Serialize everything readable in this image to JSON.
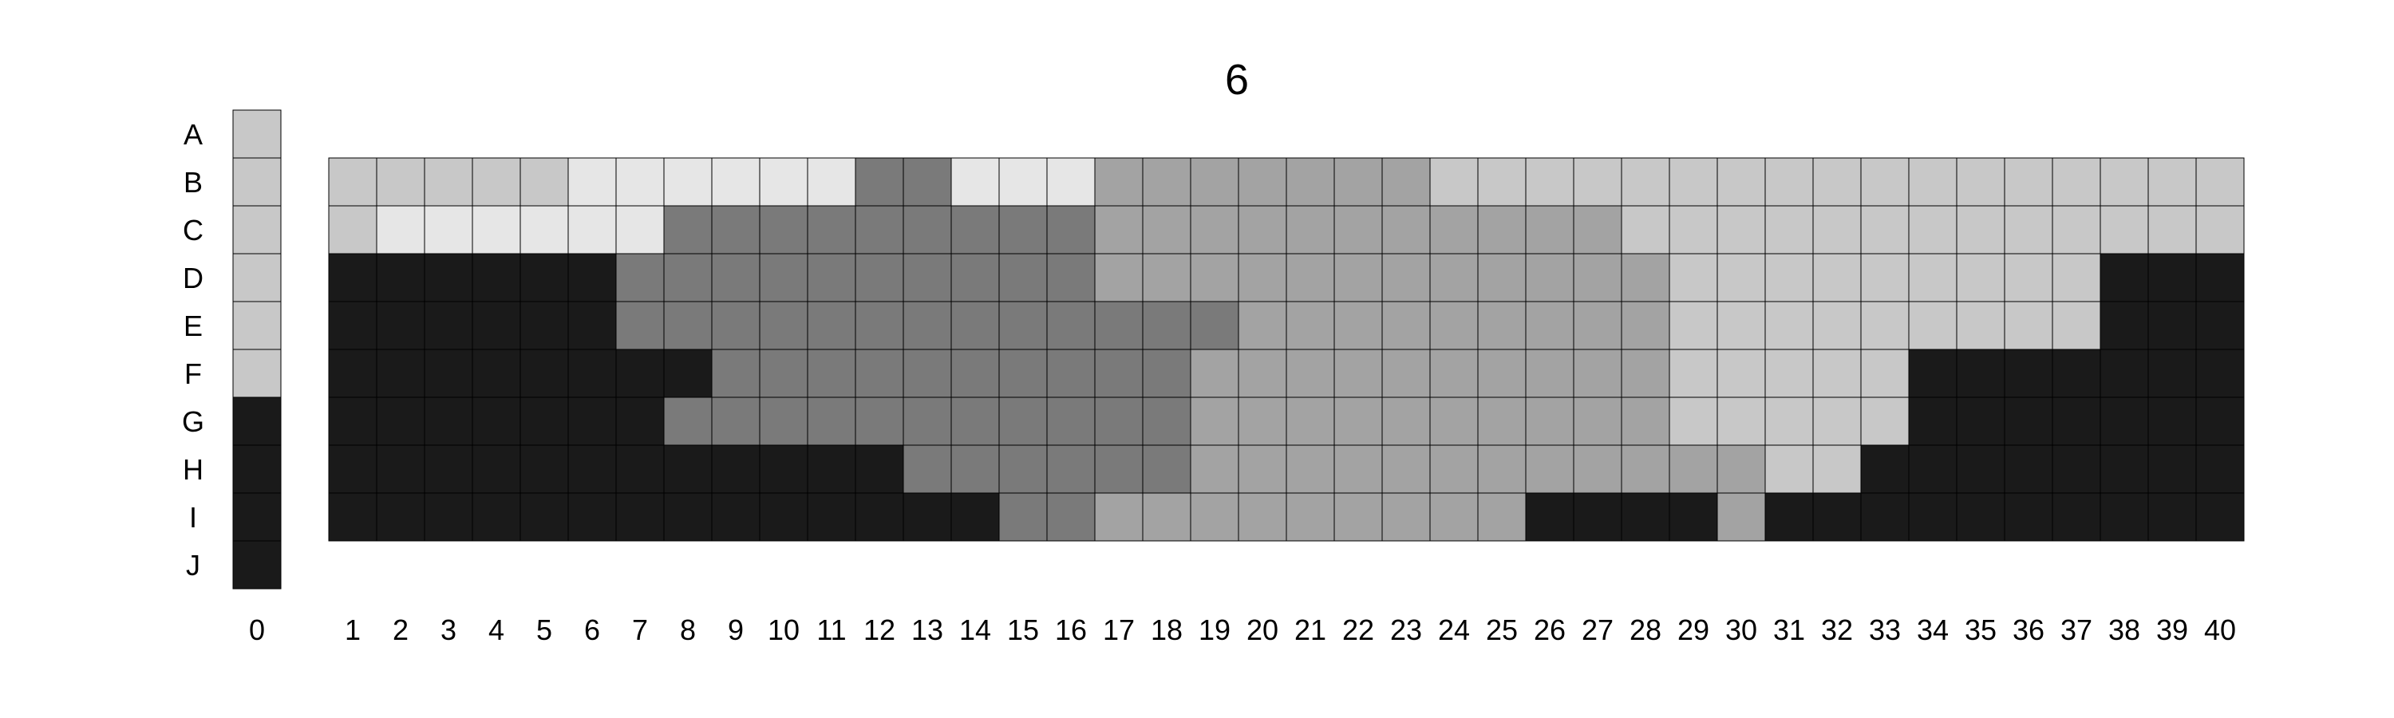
{
  "chart_data": {
    "type": "heatmap",
    "title": "6",
    "row_labels": [
      "A",
      "B",
      "C",
      "D",
      "E",
      "F",
      "G",
      "H",
      "I",
      "J"
    ],
    "legend_column": {
      "label": "0",
      "values": [
        1,
        1,
        1,
        1,
        1,
        1,
        4,
        4,
        4,
        4
      ]
    },
    "column_labels": [
      "1",
      "2",
      "3",
      "4",
      "5",
      "6",
      "7",
      "8",
      "9",
      "10",
      "11",
      "12",
      "13",
      "14",
      "15",
      "16",
      "17",
      "18",
      "19",
      "20",
      "21",
      "22",
      "23",
      "24",
      "25",
      "26",
      "27",
      "28",
      "29",
      "30",
      "31",
      "32",
      "33",
      "34",
      "35",
      "36",
      "37",
      "38",
      "39",
      "40"
    ],
    "grid_rows": [
      "B",
      "C",
      "D",
      "E",
      "F",
      "G",
      "H",
      "I"
    ],
    "values": [
      [
        1,
        1,
        1,
        1,
        1,
        0,
        0,
        0,
        0,
        0,
        0,
        3,
        3,
        0,
        0,
        0,
        2,
        2,
        2,
        2,
        2,
        2,
        2,
        1,
        1,
        1,
        1,
        1,
        1,
        1,
        1,
        1,
        1,
        1,
        1,
        1,
        1,
        1,
        1,
        1
      ],
      [
        1,
        0,
        0,
        0,
        0,
        0,
        0,
        3,
        3,
        3,
        3,
        3,
        3,
        3,
        3,
        3,
        2,
        2,
        2,
        2,
        2,
        2,
        2,
        2,
        2,
        2,
        2,
        1,
        1,
        1,
        1,
        1,
        1,
        1,
        1,
        1,
        1,
        1,
        1,
        1
      ],
      [
        4,
        4,
        4,
        4,
        4,
        4,
        3,
        3,
        3,
        3,
        3,
        3,
        3,
        3,
        3,
        3,
        2,
        2,
        2,
        2,
        2,
        2,
        2,
        2,
        2,
        2,
        2,
        2,
        1,
        1,
        1,
        1,
        1,
        1,
        1,
        1,
        1,
        4,
        4,
        4
      ],
      [
        4,
        4,
        4,
        4,
        4,
        4,
        3,
        3,
        3,
        3,
        3,
        3,
        3,
        3,
        3,
        3,
        3,
        3,
        3,
        2,
        2,
        2,
        2,
        2,
        2,
        2,
        2,
        2,
        1,
        1,
        1,
        1,
        1,
        1,
        1,
        1,
        1,
        4,
        4,
        4
      ],
      [
        4,
        4,
        4,
        4,
        4,
        4,
        4,
        4,
        3,
        3,
        3,
        3,
        3,
        3,
        3,
        3,
        3,
        3,
        2,
        2,
        2,
        2,
        2,
        2,
        2,
        2,
        2,
        2,
        1,
        1,
        1,
        1,
        1,
        4,
        4,
        4,
        4,
        4,
        4,
        4
      ],
      [
        4,
        4,
        4,
        4,
        4,
        4,
        4,
        3,
        3,
        3,
        3,
        3,
        3,
        3,
        3,
        3,
        3,
        3,
        2,
        2,
        2,
        2,
        2,
        2,
        2,
        2,
        2,
        2,
        1,
        1,
        1,
        1,
        1,
        4,
        4,
        4,
        4,
        4,
        4,
        4
      ],
      [
        4,
        4,
        4,
        4,
        4,
        4,
        4,
        4,
        4,
        4,
        4,
        4,
        3,
        3,
        3,
        3,
        3,
        3,
        2,
        2,
        2,
        2,
        2,
        2,
        2,
        2,
        2,
        2,
        2,
        2,
        1,
        1,
        4,
        4,
        4,
        4,
        4,
        4,
        4,
        4
      ],
      [
        4,
        4,
        4,
        4,
        4,
        4,
        4,
        4,
        4,
        4,
        4,
        4,
        4,
        4,
        3,
        3,
        2,
        2,
        2,
        2,
        2,
        2,
        2,
        2,
        2,
        4,
        4,
        4,
        4,
        2,
        4,
        4,
        4,
        4,
        4,
        4,
        4,
        4,
        4,
        4
      ]
    ],
    "color_scale": {
      "0": "#e6e6e6",
      "1": "#c8c8c8",
      "2": "#a3a3a3",
      "3": "#7a7a7a",
      "4": "#1a1a1a"
    },
    "grid": true,
    "legend_placement": "left"
  }
}
